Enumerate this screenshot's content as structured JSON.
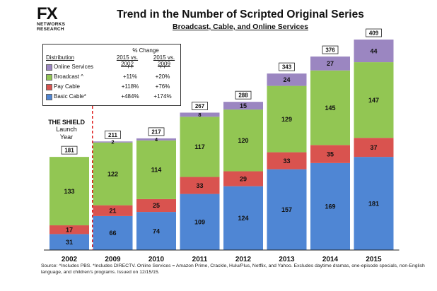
{
  "logo": {
    "mark": "FX",
    "sub1": "NETWORKS",
    "sub2": "RESEARCH"
  },
  "annotation": {
    "title": "THE SHIELD",
    "line2": "Launch",
    "line3": "Year"
  },
  "legend_table": {
    "header": "% Change",
    "distribution_label": "Distribution",
    "col1": "2015 vs. 2002",
    "col2": "2015 vs. 2009",
    "rows": [
      {
        "label": "Online Services",
        "v1": "++",
        "v2": "++",
        "color": "#9b86c1"
      },
      {
        "label": "Broadcast ^",
        "v1": "+11%",
        "v2": "+20%",
        "color": "#92c653"
      },
      {
        "label": "Pay Cable",
        "v1": "+118%",
        "v2": "+76%",
        "color": "#d9534f"
      },
      {
        "label": "Basic Cable*",
        "v1": "+484%",
        "v2": "+174%",
        "color": "#4f86d4"
      }
    ]
  },
  "footnote": "Source:  ^Includes PBS.  *Includes DIRECTV.  Online Services = Amazon Prime, Crackle, Hulu/Plus, Netflix, and Yahoo.  Excludes daytime dramas, one-episode specials, non-English language, and children's programs.  Issued on 12/15/15.",
  "chart_data": {
    "type": "bar",
    "stacked": true,
    "title": "Trend in the Number of Scripted Original Series",
    "subtitle": "Broadcast, Cable, and Online Services",
    "categories": [
      "2002",
      "2009",
      "2010",
      "2011",
      "2012",
      "2013",
      "2014",
      "2015"
    ],
    "series": [
      {
        "name": "Basic Cable*",
        "color": "#4f86d4",
        "values": [
          31,
          66,
          74,
          109,
          124,
          157,
          169,
          181
        ]
      },
      {
        "name": "Pay Cable",
        "color": "#d9534f",
        "values": [
          17,
          21,
          25,
          33,
          29,
          33,
          35,
          37
        ]
      },
      {
        "name": "Broadcast ^",
        "color": "#92c653",
        "values": [
          133,
          122,
          114,
          117,
          120,
          129,
          145,
          147
        ]
      },
      {
        "name": "Online Services",
        "color": "#9b86c1",
        "values": [
          0,
          2,
          4,
          8,
          15,
          24,
          27,
          44
        ]
      }
    ],
    "segment_labels": [
      [
        "31",
        "17",
        "133",
        ""
      ],
      [
        "66",
        "21",
        "122",
        "2"
      ],
      [
        "74",
        "25",
        "114",
        "4"
      ],
      [
        "109",
        "33",
        "117",
        "8"
      ],
      [
        "124",
        "29",
        "120",
        "15"
      ],
      [
        "157",
        "33",
        "129",
        "24"
      ],
      [
        "169",
        "35",
        "145",
        "27"
      ],
      [
        "181",
        "37",
        "147",
        "44"
      ]
    ],
    "totals": [
      "181",
      "211",
      "217",
      "267",
      "288",
      "343",
      "376",
      "409"
    ],
    "ylim": [
      0,
      420
    ],
    "grid": false,
    "divider_after_category": "2002",
    "legend_position": "top-left"
  }
}
